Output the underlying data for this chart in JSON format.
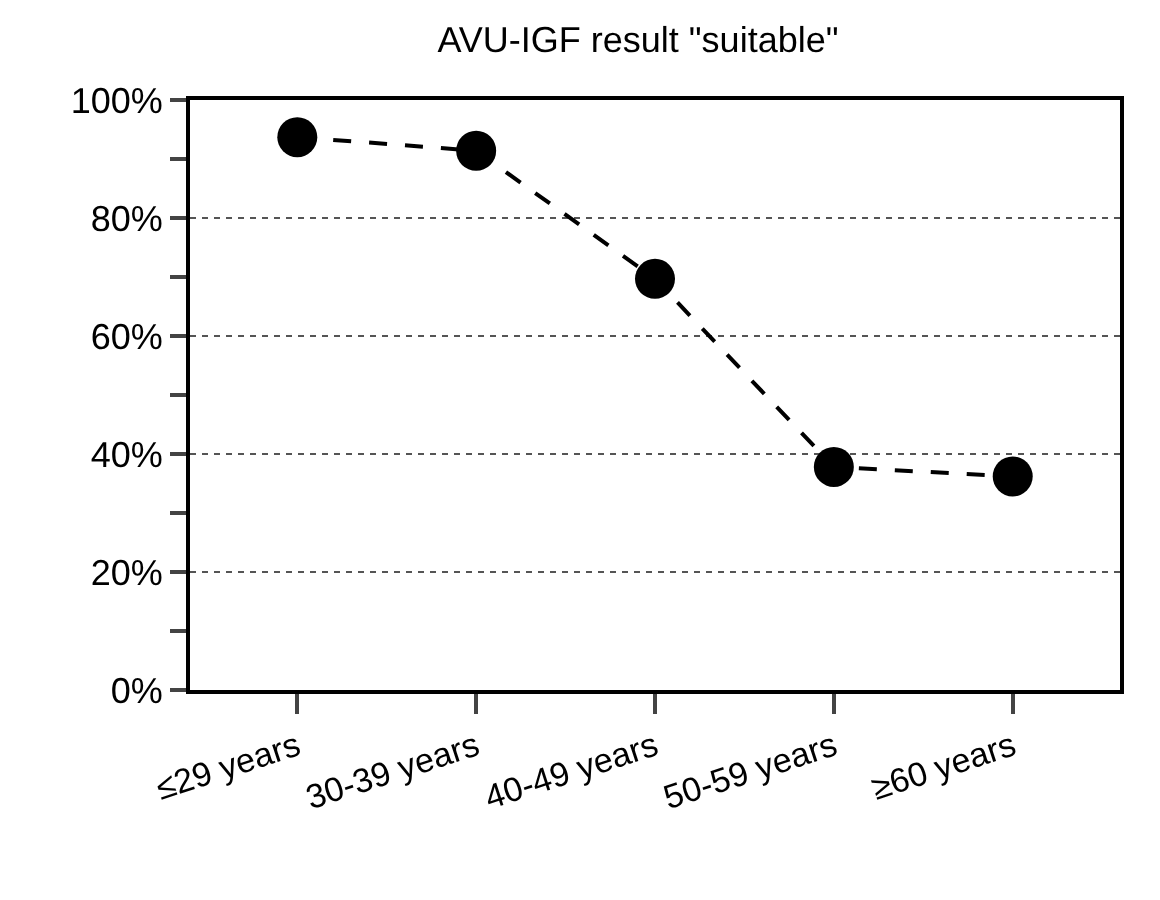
{
  "chart_data": {
    "type": "line",
    "title": "AVU-IGF result \"suitable\"",
    "categories": [
      "≤29 years",
      "30-39 years",
      "40-49 years",
      "50-59 years",
      "≥60 years"
    ],
    "series": [
      {
        "color": "#000000",
        "values": [
          93.7,
          91.4,
          69.7,
          37.8,
          36.2
        ]
      }
    ],
    "ylim": [
      0,
      100
    ],
    "yticks": [
      {
        "value": 0,
        "label": "0%"
      },
      {
        "value": 10,
        "label": null
      },
      {
        "value": 20,
        "label": "20%"
      },
      {
        "value": 30,
        "label": null
      },
      {
        "value": 40,
        "label": "40%"
      },
      {
        "value": 50,
        "label": null
      },
      {
        "value": 60,
        "label": "60%"
      },
      {
        "value": 70,
        "label": null
      },
      {
        "value": 80,
        "label": "80%"
      },
      {
        "value": 90,
        "label": null
      },
      {
        "value": 100,
        "label": "100%"
      }
    ],
    "grid": "y",
    "marker": "circle",
    "line_style": "dashed"
  }
}
